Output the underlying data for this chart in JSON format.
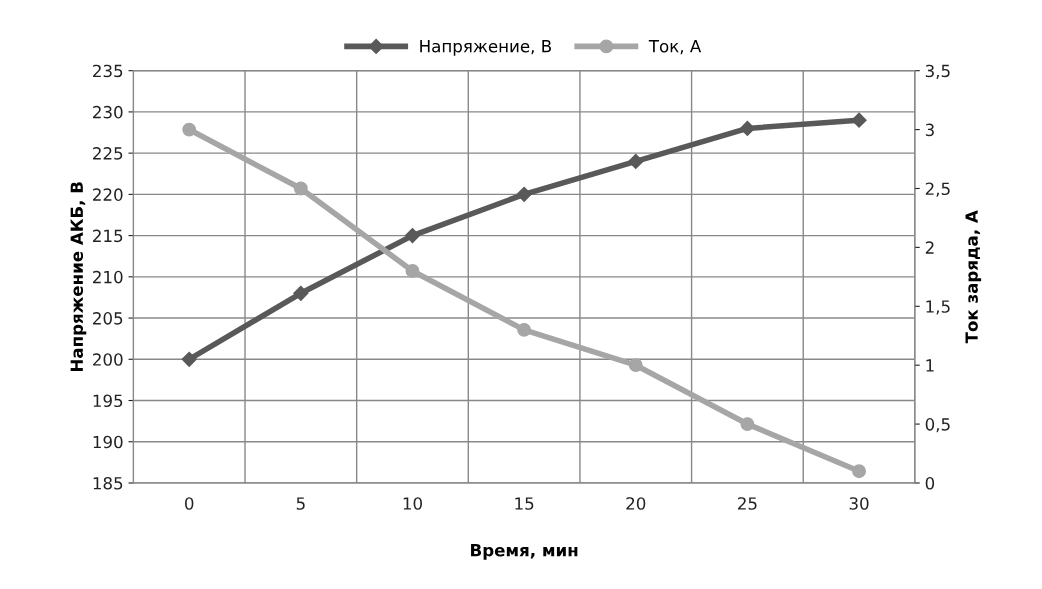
{
  "chart_data": {
    "type": "line",
    "xlabel": "Время, мин",
    "ylabel": "Напряжение АКБ, В",
    "y2label": "Ток заряда, А",
    "categories": [
      "0",
      "5",
      "10",
      "15",
      "20",
      "25",
      "30"
    ],
    "series": [
      {
        "name": "Напряжение, В",
        "color": "#595959",
        "marker": "diamond",
        "values": [
          200,
          208,
          215,
          220,
          224,
          228,
          229
        ]
      },
      {
        "name": "Ток, А",
        "color": "#a6a6a6",
        "marker": "circle",
        "axis": "y2",
        "values": [
          3,
          2.5,
          1.8,
          1.3,
          1.0,
          0.5,
          0.1
        ]
      }
    ],
    "ylim": [
      185,
      235
    ],
    "yticks": [
      185,
      190,
      195,
      200,
      205,
      210,
      215,
      220,
      225,
      230,
      235
    ],
    "y2lim": [
      0,
      3.5
    ],
    "y2ticks": [
      0,
      {
        "value": 0.5,
        "label": "0,5"
      },
      1,
      {
        "value": 1.5,
        "label": "1,5"
      },
      2,
      {
        "value": 2.5,
        "label": "2,5"
      },
      3,
      {
        "value": 3.5,
        "label": "3,5"
      }
    ],
    "grid": true,
    "legend": "top"
  }
}
